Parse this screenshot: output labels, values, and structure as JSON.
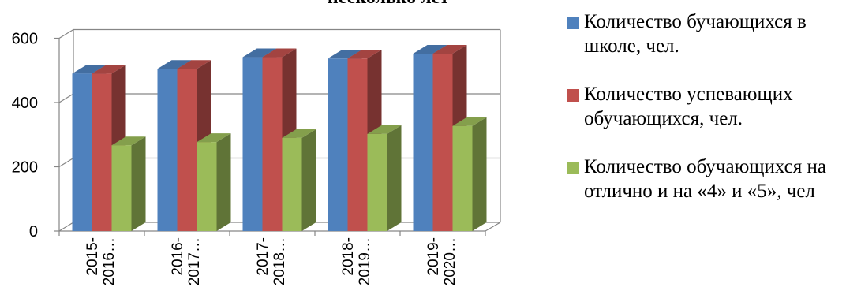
{
  "chart_data": {
    "type": "bar",
    "title": "несколько лет",
    "categories": [
      "2015-2016…",
      "2016-2017…",
      "2017-2018…",
      "2018-2019…",
      "2019-2020…"
    ],
    "category_lines": [
      [
        "2015-",
        "2016…"
      ],
      [
        "2016-",
        "2017…"
      ],
      [
        "2017-",
        "2018…"
      ],
      [
        "2018-",
        "2019…"
      ],
      [
        "2019-",
        "2020…"
      ]
    ],
    "series": [
      {
        "name": "Количество бучающихся в школе, чел.",
        "values": [
          490,
          505,
          541,
          537,
          552
        ],
        "color": "#4f81bd"
      },
      {
        "name": "Количество успевающих обучающихся, чел.",
        "values": [
          490,
          505,
          541,
          537,
          552
        ],
        "color": "#c0504d"
      },
      {
        "name": "Количество обучающихся на отлично и на «4» и «5», чел",
        "values": [
          267,
          277,
          290,
          302,
          327
        ],
        "color": "#9bbb59"
      }
    ],
    "yticks": [
      0,
      200,
      400,
      600
    ],
    "ylim": [
      0,
      600
    ],
    "grid": true,
    "legend_position": "right",
    "xlabel": "",
    "ylabel": ""
  }
}
